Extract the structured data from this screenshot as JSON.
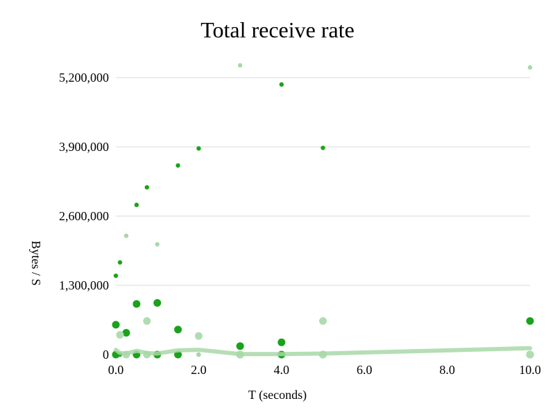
{
  "chart_data": {
    "type": "scatter",
    "title": "Total receive rate",
    "xlabel": "T (seconds)",
    "ylabel": "Bytes / S",
    "xlim": [
      0,
      10
    ],
    "ylim": [
      0,
      5200000
    ],
    "x_ticks": [
      "0.0",
      "2.0",
      "4.0",
      "6.0",
      "8.0",
      "10.0"
    ],
    "y_ticks": [
      "0",
      "1,300,000",
      "2,600,000",
      "3,900,000",
      "5,200,000"
    ],
    "grid": "horizontal",
    "legend": "none",
    "series": [
      {
        "color": "#1aa31a",
        "marker": "small",
        "points": [
          [
            0.0,
            1480000
          ],
          [
            0.1,
            1730000
          ],
          [
            0.5,
            2810000
          ],
          [
            0.75,
            3140000
          ],
          [
            1.5,
            3550000
          ],
          [
            2.0,
            3870000
          ],
          [
            4.0,
            5070000
          ],
          [
            5.0,
            3880000
          ],
          [
            0.0,
            0
          ],
          [
            0.1,
            0
          ],
          [
            0.25,
            0
          ],
          [
            0.5,
            0
          ],
          [
            0.75,
            0
          ],
          [
            1.0,
            0
          ],
          [
            2.0,
            0
          ],
          [
            3.0,
            0
          ],
          [
            4.0,
            0
          ],
          [
            5.0,
            0
          ],
          [
            10.0,
            0
          ]
        ]
      },
      {
        "color": "#a8d8a8",
        "marker": "small",
        "points": [
          [
            0.25,
            2230000
          ],
          [
            1.0,
            2070000
          ],
          [
            3.0,
            5430000
          ],
          [
            10.0,
            5390000
          ],
          [
            0.0,
            0
          ],
          [
            0.25,
            0
          ],
          [
            0.75,
            0
          ],
          [
            1.0,
            0
          ],
          [
            2.0,
            0
          ],
          [
            3.0,
            0
          ],
          [
            4.0,
            0
          ],
          [
            5.0,
            0
          ]
        ]
      },
      {
        "color": "#1aa31a",
        "marker": "large",
        "points": [
          [
            0.0,
            560000
          ],
          [
            0.25,
            410000
          ],
          [
            0.5,
            950000
          ],
          [
            1.0,
            970000
          ],
          [
            1.5,
            470000
          ],
          [
            3.0,
            160000
          ],
          [
            4.0,
            230000
          ],
          [
            10.0,
            630000
          ],
          [
            0.0,
            0
          ],
          [
            0.5,
            0
          ],
          [
            1.0,
            0
          ],
          [
            1.5,
            0
          ],
          [
            3.0,
            0
          ],
          [
            4.0,
            0
          ],
          [
            5.0,
            0
          ],
          [
            10.0,
            0
          ]
        ]
      },
      {
        "color": "#b0ddb0",
        "marker": "large",
        "points": [
          [
            0.1,
            370000
          ],
          [
            0.75,
            630000
          ],
          [
            2.0,
            350000
          ],
          [
            5.0,
            630000
          ],
          [
            0.25,
            0
          ],
          [
            0.75,
            0
          ],
          [
            3.0,
            0
          ],
          [
            5.0,
            0
          ],
          [
            10.0,
            0
          ]
        ]
      },
      {
        "color": "#a8d8a8",
        "marker": "line",
        "points": [
          [
            0.0,
            90000
          ],
          [
            0.1,
            30000
          ],
          [
            0.25,
            20000
          ],
          [
            0.5,
            70000
          ],
          [
            0.75,
            30000
          ],
          [
            1.0,
            20000
          ],
          [
            1.5,
            80000
          ],
          [
            2.0,
            90000
          ],
          [
            3.0,
            10000
          ],
          [
            4.0,
            10000
          ],
          [
            5.0,
            20000
          ],
          [
            10.0,
            120000
          ]
        ]
      }
    ]
  }
}
